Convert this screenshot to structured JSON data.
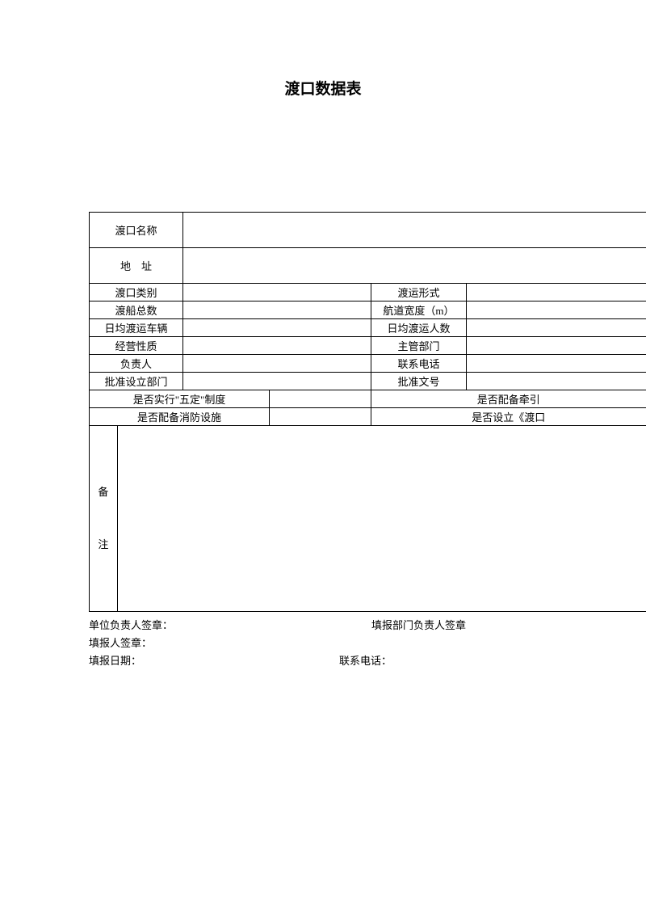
{
  "title": "渡口数据表",
  "table": {
    "row1_label": "渡口名称",
    "row2_label": "地　址",
    "row3_label1": "渡口类别",
    "row3_label2": "渡运形式",
    "row4_label1": "渡船总数",
    "row4_label2": "航道宽度（m）",
    "row5_label1": "日均渡运车辆",
    "row5_label2": "日均渡运人数",
    "row6_label1": "经营性质",
    "row6_label2": "主管部门",
    "row7_label1": "负责人",
    "row7_label2": "联系电话",
    "row8_label1": "批准设立部门",
    "row8_label2": "批准文号",
    "row9_label1": "是否实行\"五定\"制度",
    "row9_label2": "是否配备牵引",
    "row10_label1": "是否配备消防设施",
    "row10_label2": "是否设立《渡口",
    "notes_label_1": "备",
    "notes_label_2": "注"
  },
  "footer": {
    "line1_left": "单位负责人签章：",
    "line1_right": "填报部门负责人签章",
    "line2": "填报人签章：",
    "line3_left": "填报日期：",
    "line3_right": "联系电话："
  },
  "layout": {
    "col1_width": 35,
    "col2_width": 82,
    "col3_width": 110,
    "col4_width": 130,
    "col5_width": 120,
    "col6_width": 130,
    "col7_width": 100
  }
}
